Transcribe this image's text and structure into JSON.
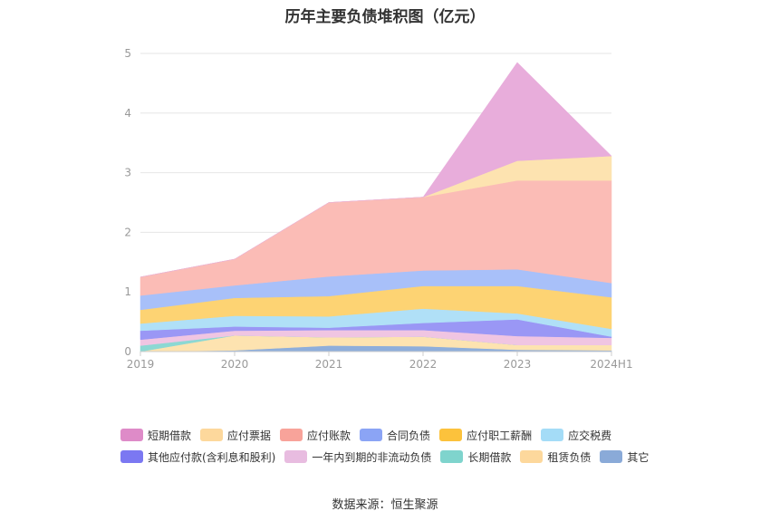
{
  "title": "历年主要负债堆积图（亿元）",
  "source": "数据来源：恒生聚源",
  "chart_data": {
    "type": "area",
    "stacked": true,
    "title": "历年主要负债堆积图（亿元）",
    "categories": [
      "2019",
      "2020",
      "2021",
      "2022",
      "2023",
      "2024H1"
    ],
    "y_ticks": [
      0,
      1,
      2,
      3,
      4,
      5
    ],
    "ylim": [
      0,
      5
    ],
    "grid": true,
    "legend_position": "bottom",
    "series": [
      {
        "name": "其它",
        "color": "#8eaedb",
        "values": [
          0.0,
          0.02,
          0.1,
          0.09,
          0.03,
          0.02
        ]
      },
      {
        "name": "租赁负债",
        "color": "#fde3b0",
        "values": [
          0.0,
          0.25,
          0.14,
          0.16,
          0.08,
          0.09
        ]
      },
      {
        "name": "长期借款",
        "color": "#8cd8d3",
        "values": [
          0.1,
          0.0,
          0.0,
          0.0,
          0.0,
          0.0
        ]
      },
      {
        "name": "一年内到期的非流动负债",
        "color": "#f0c5e2",
        "values": [
          0.1,
          0.08,
          0.12,
          0.11,
          0.15,
          0.12
        ]
      },
      {
        "name": "其他应付款(含利息和股利)",
        "color": "#9a97f5",
        "values": [
          0.15,
          0.07,
          0.04,
          0.12,
          0.28,
          0.02
        ]
      },
      {
        "name": "应交税费",
        "color": "#b0e0f7",
        "values": [
          0.12,
          0.18,
          0.19,
          0.24,
          0.1,
          0.13
        ]
      },
      {
        "name": "应付职工薪酬",
        "color": "#fdd373",
        "values": [
          0.23,
          0.3,
          0.34,
          0.38,
          0.46,
          0.53
        ]
      },
      {
        "name": "合同负债",
        "color": "#a8c0f9",
        "values": [
          0.24,
          0.21,
          0.33,
          0.26,
          0.28,
          0.24
        ]
      },
      {
        "name": "应付账款",
        "color": "#fbbcb6",
        "values": [
          0.31,
          0.44,
          1.24,
          1.23,
          1.49,
          1.72
        ]
      },
      {
        "name": "应付票据",
        "color": "#fde3b0",
        "values": [
          0.0,
          0.0,
          0.0,
          0.0,
          0.33,
          0.41
        ]
      },
      {
        "name": "短期借款",
        "color": "#e8addb",
        "values": [
          0.0,
          0.0,
          0.0,
          0.0,
          1.65,
          0.0
        ]
      }
    ],
    "legend": [
      {
        "name": "短期借款",
        "color": "#de8bc8"
      },
      {
        "name": "应付票据",
        "color": "#fdd89c"
      },
      {
        "name": "应付账款",
        "color": "#f8a39a"
      },
      {
        "name": "合同负债",
        "color": "#8ba4f5"
      },
      {
        "name": "应付职工薪酬",
        "color": "#fcc23c"
      },
      {
        "name": "应交税费",
        "color": "#a4dcf7"
      },
      {
        "name": "其他应付款(含利息和股利)",
        "color": "#7b78f2"
      },
      {
        "name": "一年内到期的非流动负债",
        "color": "#e8bce0"
      },
      {
        "name": "长期借款",
        "color": "#7fd4cd"
      },
      {
        "name": "租赁负债",
        "color": "#fdd89c"
      },
      {
        "name": "其它",
        "color": "#8aaad8"
      }
    ]
  }
}
